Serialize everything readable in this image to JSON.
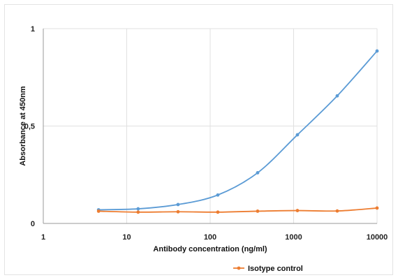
{
  "chart_data": {
    "type": "line",
    "xscale": "log",
    "xlim": [
      1,
      10000
    ],
    "ylim": [
      0,
      1
    ],
    "xlabel": "Antibody concentration (ng/ml)",
    "ylabel": "Absorbance at 450nm",
    "x_ticks": [
      "1",
      "10",
      "100",
      "1000",
      "10000"
    ],
    "y_ticks": [
      "0",
      "0,5",
      "1"
    ],
    "grid": true,
    "legend_position": "bottom-right",
    "series": [
      {
        "name": "",
        "color": "#5b9bd5",
        "x": [
          4.6,
          13.7,
          41.2,
          123.5,
          370.4,
          1111,
          3333,
          10000
        ],
        "y": [
          0.07,
          0.075,
          0.097,
          0.146,
          0.26,
          0.455,
          0.655,
          0.885
        ]
      },
      {
        "name": "Isotype control",
        "color": "#ed7d31",
        "x": [
          4.6,
          13.7,
          41.2,
          123.5,
          370.4,
          1111,
          3333,
          10000
        ],
        "y": [
          0.063,
          0.058,
          0.06,
          0.058,
          0.063,
          0.066,
          0.064,
          0.079
        ]
      }
    ]
  }
}
